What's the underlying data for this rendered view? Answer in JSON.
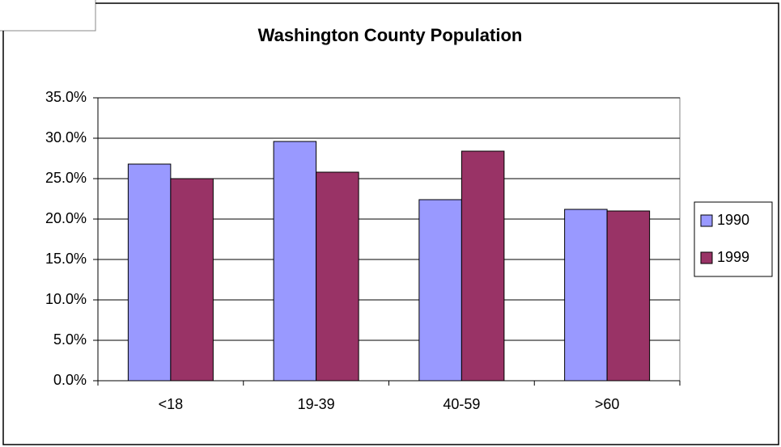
{
  "chart_data": {
    "type": "bar",
    "title": "Washington County Population",
    "categories": [
      "<18",
      "19-39",
      "40-59",
      ">60"
    ],
    "series": [
      {
        "name": "1990",
        "color": "#9999ff",
        "values": [
          26.8,
          29.6,
          22.4,
          21.2
        ]
      },
      {
        "name": "1999",
        "color": "#993366",
        "values": [
          25.0,
          25.8,
          28.4,
          21.0
        ]
      }
    ],
    "ylim": [
      0,
      35
    ],
    "yticks": [
      {
        "value": 0,
        "label": "0.0%"
      },
      {
        "value": 5,
        "label": "5.0%"
      },
      {
        "value": 10,
        "label": "10.0%"
      },
      {
        "value": 15,
        "label": "15.0%"
      },
      {
        "value": 20,
        "label": "20.0%"
      },
      {
        "value": 25,
        "label": "25.0%"
      },
      {
        "value": 30,
        "label": "30.0%"
      },
      {
        "value": 35,
        "label": "35.0%"
      }
    ],
    "grid": true,
    "legend": "right"
  }
}
